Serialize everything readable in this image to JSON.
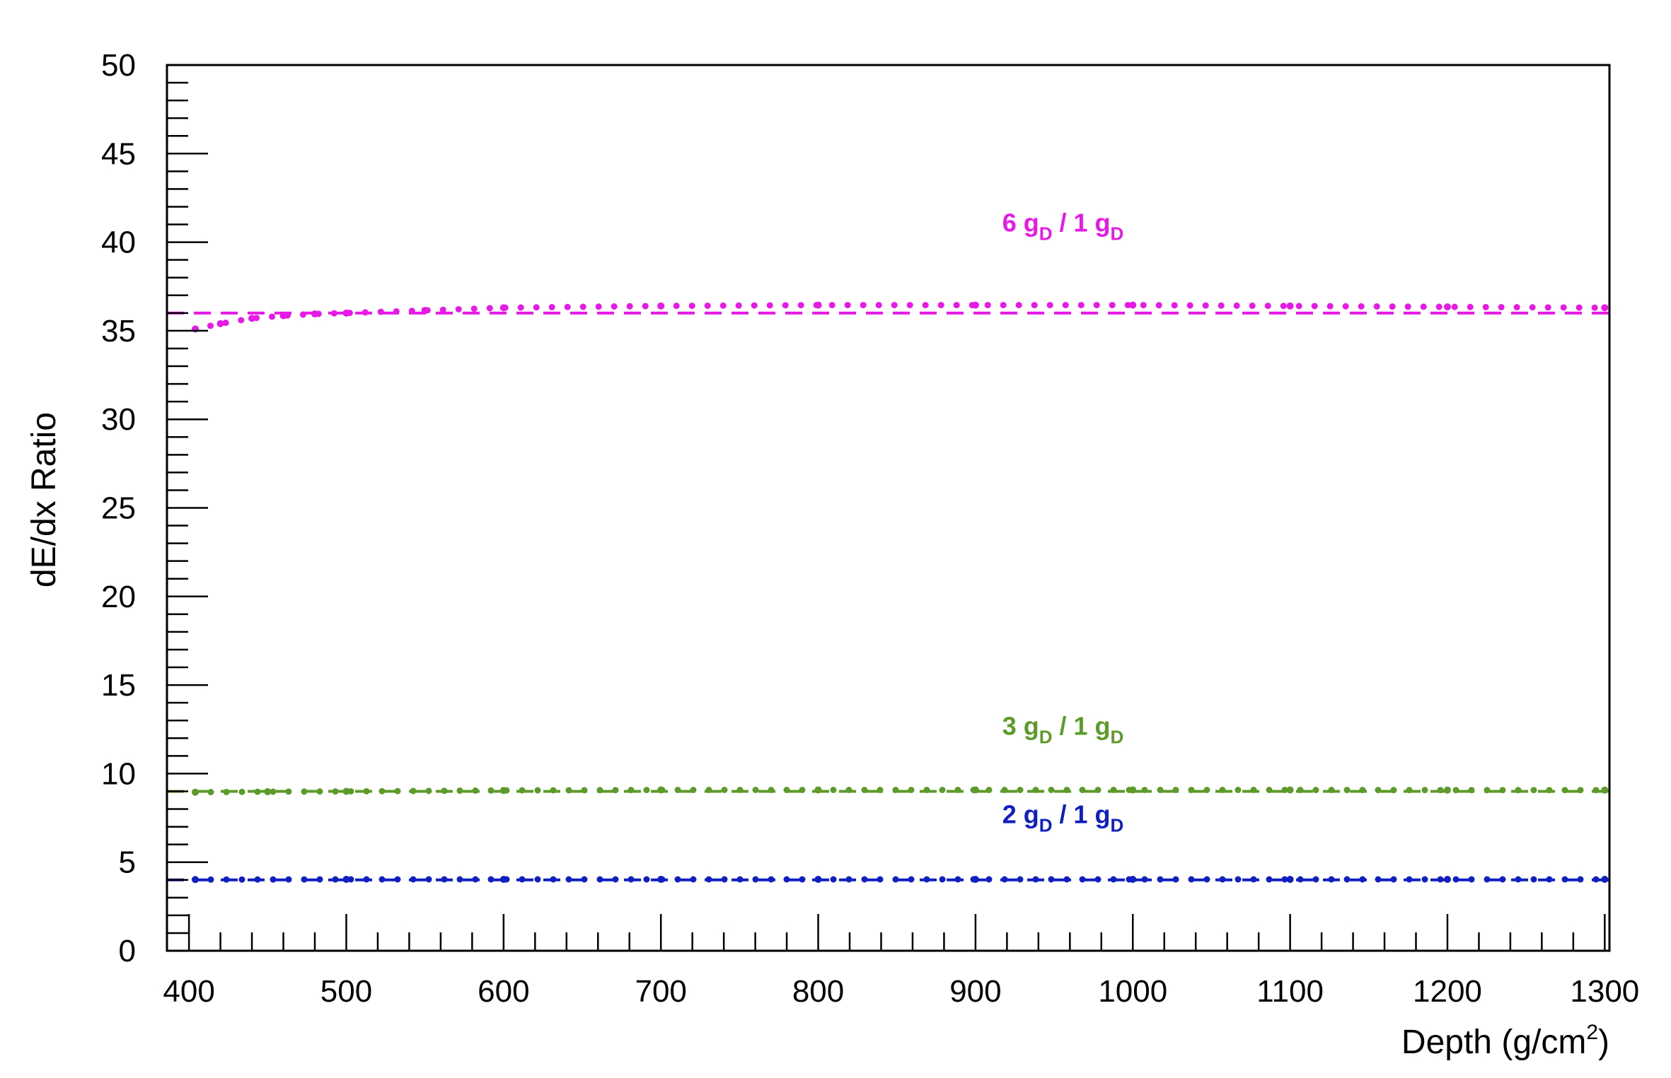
{
  "chart_data": {
    "type": "line",
    "xlabel": "Depth (g/cm",
    "xlabel_sup": "2",
    "xlabel_end": ")",
    "ylabel": "dE/dx Ratio",
    "xlim": [
      386,
      1303
    ],
    "ylim": [
      0,
      50
    ],
    "x_ticks": [
      400,
      500,
      600,
      700,
      800,
      900,
      1000,
      1100,
      1200,
      1300
    ],
    "y_ticks": [
      0,
      5,
      10,
      15,
      20,
      25,
      30,
      35,
      40,
      45,
      50
    ],
    "grid": false,
    "series": [
      {
        "name": "6 gD / 1 gD",
        "label_prefix": "6 g",
        "label_sub": "D",
        "label_mid": " / 1 g",
        "label_sub2": "D",
        "color": "#e619e6",
        "reference_value": 36,
        "x": [
          404,
          420,
          440,
          460,
          480,
          500,
          550,
          600,
          700,
          800,
          900,
          1000,
          1100,
          1200,
          1300
        ],
        "y": [
          35.1,
          35.4,
          35.7,
          35.85,
          35.95,
          36.0,
          36.15,
          36.3,
          36.4,
          36.45,
          36.45,
          36.45,
          36.4,
          36.35,
          36.3
        ]
      },
      {
        "name": "3 gD / 1 gD",
        "label_prefix": "3 g",
        "label_sub": "D",
        "label_mid": " / 1 g",
        "label_sub2": "D",
        "color": "#5c9a2a",
        "reference_value": 9,
        "x": [
          404,
          450,
          500,
          600,
          700,
          800,
          900,
          1000,
          1100,
          1200,
          1300
        ],
        "y": [
          8.95,
          8.98,
          9.0,
          9.05,
          9.08,
          9.08,
          9.08,
          9.08,
          9.08,
          9.07,
          9.07
        ]
      },
      {
        "name": "2 gD / 1 gD",
        "label_prefix": "2 g",
        "label_sub": "D",
        "label_mid": " / 1 g",
        "label_sub2": "D",
        "color": "#1020c0",
        "reference_value": 4,
        "x": [
          404,
          500,
          600,
          700,
          800,
          900,
          1000,
          1100,
          1200,
          1300
        ],
        "y": [
          4.02,
          4.03,
          4.03,
          4.03,
          4.03,
          4.03,
          4.03,
          4.03,
          4.03,
          4.03
        ]
      }
    ]
  }
}
